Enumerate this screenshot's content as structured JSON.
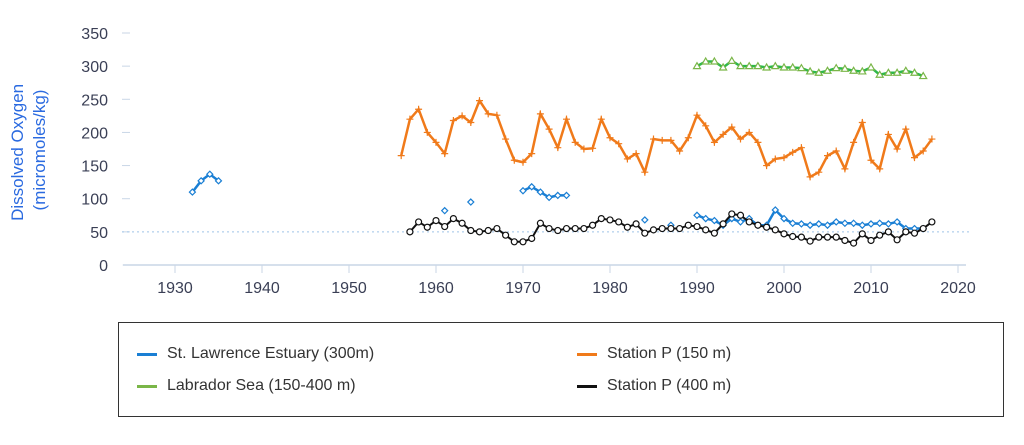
{
  "chart_data": {
    "type": "line",
    "ylabel": "Dissolved Oxygen (micromoles/kg)",
    "ylabel_lines": [
      "Dissolved Oxygen",
      "(micromoles/kg)"
    ],
    "xlim": [
      1924,
      2020
    ],
    "ylim": [
      0,
      350
    ],
    "xticks": [
      1930,
      1940,
      1950,
      1960,
      1970,
      1980,
      1990,
      2000,
      2010,
      2020
    ],
    "yticks": [
      0,
      50,
      100,
      150,
      200,
      250,
      300,
      350
    ],
    "reference_line": 50,
    "legend_position": "bottom",
    "series": [
      {
        "name": "St. Lawrence Estuary (300m)",
        "color": "#1a7fd4",
        "marker": "diamond",
        "x": [
          1932,
          1933,
          1934,
          1935,
          1961,
          1964,
          1970,
          1971,
          1972,
          1973,
          1974,
          1975,
          1984,
          1987,
          1990,
          1991,
          1992,
          1993,
          1994,
          1995,
          1996,
          1997,
          1998,
          1999,
          2000,
          2001,
          2002,
          2003,
          2004,
          2005,
          2006,
          2007,
          2008,
          2009,
          2010,
          2011,
          2012,
          2013,
          2014,
          2015,
          2016
        ],
        "y": [
          110,
          127,
          137,
          127,
          82,
          95,
          112,
          118,
          110,
          102,
          105,
          105,
          68,
          60,
          75,
          70,
          67,
          60,
          70,
          65,
          70,
          60,
          60,
          83,
          70,
          63,
          62,
          60,
          62,
          60,
          65,
          63,
          63,
          60,
          62,
          63,
          62,
          65,
          55,
          55,
          55
        ]
      },
      {
        "name": "Station P (150 m)",
        "color": "#f07a1a",
        "marker": "plus",
        "x": [
          1956,
          1957,
          1958,
          1959,
          1960,
          1961,
          1962,
          1963,
          1964,
          1965,
          1966,
          1967,
          1968,
          1969,
          1970,
          1971,
          1972,
          1973,
          1974,
          1975,
          1976,
          1977,
          1978,
          1979,
          1980,
          1981,
          1982,
          1983,
          1984,
          1985,
          1986,
          1987,
          1988,
          1989,
          1990,
          1991,
          1992,
          1993,
          1994,
          1995,
          1996,
          1997,
          1998,
          1999,
          2000,
          2001,
          2002,
          2003,
          2004,
          2005,
          2006,
          2007,
          2008,
          2009,
          2010,
          2011,
          2012,
          2013,
          2014,
          2015,
          2016,
          2017
        ],
        "y": [
          165,
          220,
          235,
          200,
          185,
          168,
          218,
          225,
          215,
          248,
          228,
          226,
          190,
          158,
          155,
          168,
          228,
          205,
          177,
          220,
          185,
          175,
          176,
          220,
          192,
          183,
          160,
          168,
          140,
          190,
          188,
          188,
          172,
          192,
          226,
          210,
          185,
          197,
          208,
          190,
          200,
          185,
          150,
          160,
          162,
          170,
          177,
          133,
          140,
          165,
          172,
          145,
          185,
          215,
          158,
          145,
          197,
          175,
          205,
          162,
          172,
          190
        ]
      },
      {
        "name": "Labrador Sea (150-400 m)",
        "color": "#2db84a",
        "marker": "triangle",
        "x": [
          1990,
          1991,
          1992,
          1993,
          1994,
          1995,
          1996,
          1997,
          1998,
          1999,
          2000,
          2001,
          2002,
          2003,
          2004,
          2005,
          2006,
          2007,
          2008,
          2009,
          2010,
          2011,
          2012,
          2013,
          2014,
          2015,
          2016
        ],
        "y": [
          300,
          307,
          307,
          298,
          308,
          300,
          300,
          300,
          298,
          300,
          298,
          298,
          297,
          292,
          290,
          293,
          297,
          296,
          293,
          292,
          298,
          287,
          290,
          290,
          293,
          290,
          285
        ]
      },
      {
        "name": "Station P (400 m)",
        "color": "#111111",
        "marker": "circle",
        "x": [
          1957,
          1958,
          1959,
          1960,
          1961,
          1962,
          1963,
          1964,
          1965,
          1966,
          1967,
          1968,
          1969,
          1970,
          1971,
          1972,
          1973,
          1974,
          1975,
          1976,
          1977,
          1978,
          1979,
          1980,
          1981,
          1982,
          1983,
          1984,
          1985,
          1986,
          1987,
          1988,
          1989,
          1990,
          1991,
          1992,
          1993,
          1994,
          1995,
          1996,
          1997,
          1998,
          1999,
          2000,
          2001,
          2002,
          2003,
          2004,
          2005,
          2006,
          2007,
          2008,
          2009,
          2010,
          2011,
          2012,
          2013,
          2014,
          2015,
          2016,
          2017
        ],
        "y": [
          50,
          65,
          57,
          67,
          58,
          70,
          63,
          52,
          50,
          52,
          55,
          45,
          35,
          35,
          40,
          63,
          55,
          52,
          55,
          55,
          55,
          60,
          70,
          68,
          65,
          57,
          62,
          48,
          53,
          55,
          55,
          55,
          60,
          58,
          53,
          48,
          62,
          77,
          75,
          65,
          60,
          57,
          53,
          47,
          43,
          42,
          36,
          42,
          42,
          42,
          37,
          33,
          47,
          37,
          45,
          50,
          38,
          50,
          48,
          55,
          65
        ]
      }
    ]
  },
  "legend": {
    "items": [
      "St. Lawrence Estuary (300m)",
      "Station P (150 m)",
      "Labrador Sea (150-400 m)",
      "Station P (400 m)"
    ]
  }
}
